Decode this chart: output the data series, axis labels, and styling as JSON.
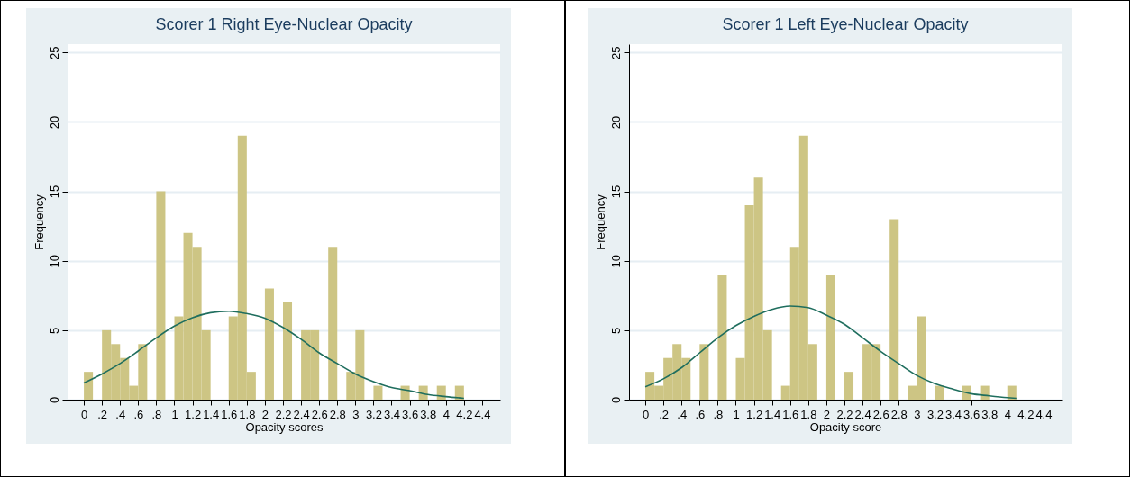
{
  "chart_data": [
    {
      "type": "histogram",
      "title": "Scorer 1 Right Eye-Nuclear Opacity",
      "xlabel": "Opacity scores",
      "ylabel": "Frequency",
      "color": "#cdc584",
      "grid": "y",
      "bins": [
        0,
        0.1,
        0.2,
        0.3,
        0.4,
        0.5,
        0.6,
        0.7,
        0.8,
        0.9,
        1.0,
        1.1,
        1.2,
        1.3,
        1.4,
        1.5,
        1.6,
        1.7,
        1.8,
        1.9,
        2.0,
        2.1,
        2.2,
        2.3,
        2.4,
        2.5,
        2.6,
        2.7,
        2.8,
        2.9,
        3.0,
        3.1,
        3.2,
        3.3,
        3.4,
        3.5,
        3.6,
        3.7,
        3.8,
        3.9,
        4.0,
        4.1,
        4.2
      ],
      "values": [
        2,
        0,
        5,
        4,
        3,
        1,
        4,
        0,
        15,
        0,
        6,
        12,
        11,
        5,
        0,
        0,
        6,
        19,
        2,
        0,
        8,
        0,
        7,
        0,
        5,
        5,
        0,
        11,
        0,
        2,
        5,
        0,
        1,
        0,
        0,
        1,
        0,
        1,
        0,
        1,
        0,
        1
      ],
      "series": [
        {
          "type": "line",
          "color": "#1f6e5e",
          "x": [
            0,
            0.2,
            0.4,
            0.6,
            0.8,
            1.0,
            1.2,
            1.4,
            1.6,
            1.8,
            2.0,
            2.2,
            2.4,
            2.6,
            2.8,
            3.0,
            3.2,
            3.4,
            3.6,
            3.8,
            4.0,
            4.2
          ],
          "values": [
            1.2,
            1.85,
            2.6,
            3.5,
            4.45,
            5.3,
            5.9,
            6.26,
            6.37,
            6.2,
            5.87,
            5.2,
            4.35,
            3.37,
            2.6,
            1.85,
            1.3,
            0.87,
            0.65,
            0.37,
            0.22,
            0.1
          ]
        }
      ],
      "xlim": [
        -0.18,
        4.6
      ],
      "ylim": [
        0,
        25.6
      ],
      "yticks": [
        0,
        5,
        10,
        15,
        20,
        25
      ],
      "xticks": [
        0,
        {
          "value": 0.2,
          "label": ".2"
        },
        {
          "value": 0.4,
          "label": ".4"
        },
        {
          "value": 0.6,
          "label": ".6"
        },
        {
          "value": 0.8,
          "label": ".8"
        },
        1,
        1.2,
        1.4,
        1.6,
        1.8,
        2,
        2.2,
        2.4,
        2.6,
        2.8,
        3,
        3.2,
        3.4,
        3.6,
        3.8,
        4,
        4.2,
        4.4
      ]
    },
    {
      "type": "histogram",
      "title": "Scorer 1 Left  Eye-Nuclear Opacity",
      "xlabel": "Opacity score",
      "ylabel": "Frequency",
      "color": "#cdc584",
      "grid": "y",
      "bins": [
        0,
        0.1,
        0.2,
        0.3,
        0.4,
        0.5,
        0.6,
        0.7,
        0.8,
        0.9,
        1.0,
        1.1,
        1.2,
        1.3,
        1.4,
        1.5,
        1.6,
        1.7,
        1.8,
        1.9,
        2.0,
        2.1,
        2.2,
        2.3,
        2.4,
        2.5,
        2.6,
        2.7,
        2.8,
        2.9,
        3.0,
        3.1,
        3.2,
        3.3,
        3.4,
        3.5,
        3.6,
        3.7,
        3.8,
        3.9,
        4.0,
        4.1
      ],
      "values": [
        2,
        1,
        3,
        4,
        3,
        0,
        4,
        0,
        9,
        0,
        3,
        14,
        16,
        5,
        0,
        1,
        11,
        19,
        4,
        0,
        9,
        0,
        2,
        0,
        4,
        4,
        0,
        13,
        0,
        1,
        6,
        0,
        1,
        0,
        0,
        1,
        0,
        1,
        0,
        0,
        1
      ],
      "series": [
        {
          "type": "line",
          "color": "#1f6e5e",
          "x": [
            0,
            0.2,
            0.4,
            0.6,
            0.8,
            1.0,
            1.2,
            1.4,
            1.6,
            1.8,
            2.0,
            2.2,
            2.4,
            2.6,
            2.8,
            3.0,
            3.2,
            3.4,
            3.6,
            3.8,
            4.0,
            4.1
          ],
          "values": [
            0.93,
            1.5,
            2.3,
            3.37,
            4.45,
            5.33,
            6.0,
            6.5,
            6.74,
            6.63,
            6.09,
            5.43,
            4.46,
            3.48,
            2.6,
            1.74,
            1.15,
            0.76,
            0.43,
            0.28,
            0.15,
            0.1
          ]
        }
      ],
      "xlim": [
        -0.18,
        4.6
      ],
      "ylim": [
        0,
        25.6
      ],
      "yticks": [
        0,
        5,
        10,
        15,
        20,
        25
      ],
      "xticks": [
        0,
        {
          "value": 0.2,
          "label": ".2"
        },
        {
          "value": 0.4,
          "label": ".4"
        },
        {
          "value": 0.6,
          "label": ".6"
        },
        {
          "value": 0.8,
          "label": ".8"
        },
        1,
        1.2,
        1.4,
        1.6,
        1.8,
        2,
        2.2,
        2.4,
        2.6,
        2.8,
        3,
        3.2,
        3.4,
        3.6,
        3.8,
        4,
        4.2,
        4.4
      ]
    }
  ]
}
